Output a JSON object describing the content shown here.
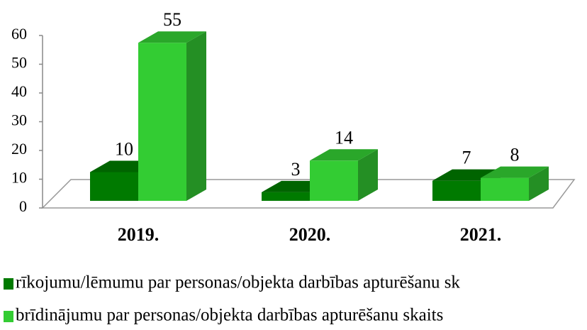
{
  "chart_data": {
    "type": "bar3d",
    "categories": [
      "2019.",
      "2020.",
      "2021."
    ],
    "series": [
      {
        "name": "rīkojumu/lēmumu par personas/objekta darbības apturēšanu sk",
        "color": "#007a00",
        "values": [
          10,
          3,
          7
        ]
      },
      {
        "name": "brīdinājumu par personas/objekta darbības apturēšanu skaits",
        "color": "#33cc33",
        "values": [
          55,
          14,
          8
        ]
      }
    ],
    "ylim": [
      0,
      60
    ],
    "yticks": [
      0,
      10,
      20,
      30,
      40,
      50,
      60
    ],
    "legend": "bottom"
  }
}
